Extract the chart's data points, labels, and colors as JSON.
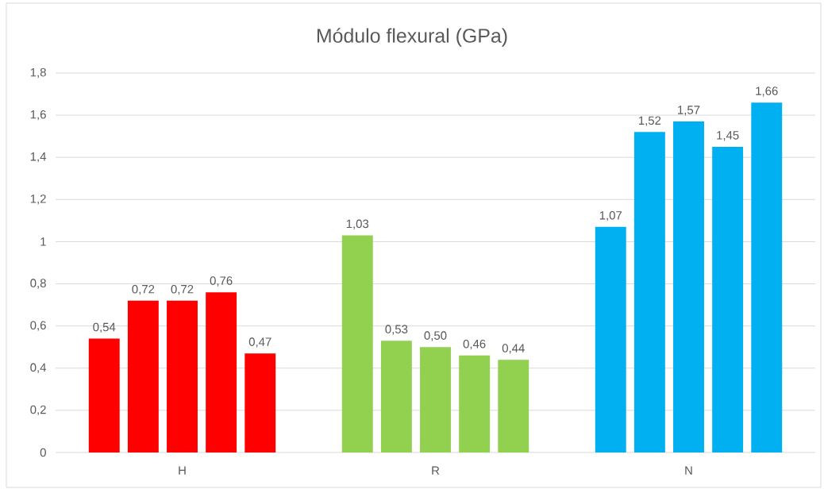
{
  "chart_data": {
    "type": "bar",
    "title": "Módulo flexural (GPa)",
    "categories": [
      "H",
      "R",
      "N"
    ],
    "series": [
      {
        "colors": [
          "#ff0000",
          "#92d050",
          "#00b0f0"
        ],
        "values": [
          0.54,
          1.03,
          1.07
        ],
        "value_labels": [
          "0,54",
          "1,03",
          "1,07"
        ]
      },
      {
        "colors": [
          "#ff0000",
          "#92d050",
          "#00b0f0"
        ],
        "values": [
          0.72,
          0.53,
          1.52
        ],
        "value_labels": [
          "0,72",
          "0,53",
          "1,52"
        ]
      },
      {
        "colors": [
          "#ff0000",
          "#92d050",
          "#00b0f0"
        ],
        "values": [
          0.72,
          0.5,
          1.57
        ],
        "value_labels": [
          "0,72",
          "0,50",
          "1,57"
        ]
      },
      {
        "colors": [
          "#ff0000",
          "#92d050",
          "#00b0f0"
        ],
        "values": [
          0.76,
          0.46,
          1.45
        ],
        "value_labels": [
          "0,76",
          "0,46",
          "1,45"
        ]
      },
      {
        "colors": [
          "#ff0000",
          "#92d050",
          "#00b0f0"
        ],
        "values": [
          0.47,
          0.44,
          1.66
        ],
        "value_labels": [
          "0,47",
          "0,44",
          "1,66"
        ]
      }
    ],
    "ylim": [
      0,
      1.8
    ],
    "yticks": [
      0,
      {
        "value": 0.2,
        "label": "0,2"
      },
      {
        "value": 0.4,
        "label": "0,4"
      },
      {
        "value": 0.6,
        "label": "0,6"
      },
      {
        "value": 0.8,
        "label": "0,8"
      },
      1,
      {
        "value": 1.2,
        "label": "1,2"
      },
      {
        "value": 1.4,
        "label": "1,4"
      },
      {
        "value": 1.6,
        "label": "1,6"
      },
      {
        "value": 1.8,
        "label": "1,8"
      }
    ],
    "grid": "y"
  }
}
